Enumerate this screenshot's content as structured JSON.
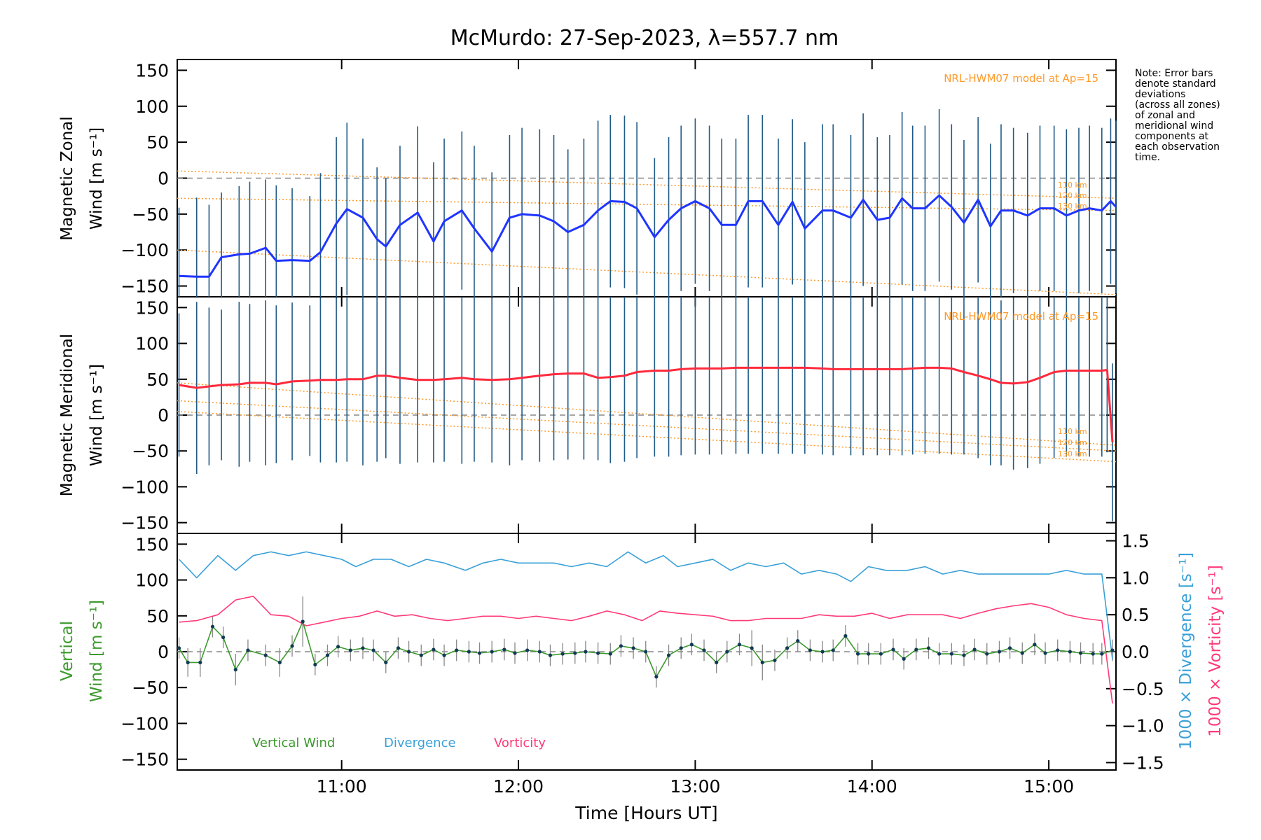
{
  "colors": {
    "zonal": "#1f35ff",
    "meridional": "#ff2a3d",
    "vertical": "#3c9a2d",
    "divergence": "#3aa0d8",
    "vorticity": "#ff3a78",
    "model": "#ff9a2a",
    "errorbar": "#215a86"
  },
  "chart_data": {
    "type": "line",
    "title": "McMurdo: 27-Sep-2023, λ=557.7 nm",
    "xlabel": "Time [Hours UT]",
    "xlim": [
      10.07,
      15.38
    ],
    "xticks": [
      11,
      12,
      13,
      14,
      15
    ],
    "xtick_labels": [
      "11:00",
      "12:00",
      "13:00",
      "14:00",
      "15:00"
    ],
    "yticks": [
      150,
      100,
      50,
      0,
      -50,
      -100,
      -150
    ],
    "ytick_labels": [
      "150",
      "100",
      "50",
      "0",
      "−50",
      "−100",
      "−150"
    ],
    "note": [
      "Note: Error bars",
      "denote standard",
      "deviations",
      "(across all zones)",
      "of zonal and",
      "meridional wind",
      "components at",
      "each observation",
      "time."
    ],
    "zonal": {
      "ylabel_line1": "Magnetic Zonal",
      "ylabel_line2": "Wind [m s⁻¹]",
      "ylim": [
        -165,
        165
      ],
      "model_label": "NRL-HWM07 model at Ap=15",
      "altitude_labels": [
        "110 km",
        "120 km",
        "130 km"
      ],
      "series": [
        {
          "name": "Magnetic Zonal Wind",
          "x": [
            10.08,
            10.18,
            10.25,
            10.32,
            10.42,
            10.48,
            10.57,
            10.63,
            10.72,
            10.82,
            10.88,
            10.97,
            11.03,
            11.12,
            11.2,
            11.25,
            11.33,
            11.43,
            11.52,
            11.58,
            11.68,
            11.75,
            11.85,
            11.95,
            12.02,
            12.12,
            12.2,
            12.28,
            12.37,
            12.45,
            12.52,
            12.6,
            12.67,
            12.77,
            12.85,
            12.92,
            13.0,
            13.08,
            13.15,
            13.23,
            13.3,
            13.38,
            13.47,
            13.55,
            13.62,
            13.72,
            13.78,
            13.88,
            13.95,
            14.03,
            14.1,
            14.17,
            14.23,
            14.3,
            14.38,
            14.45,
            14.52,
            14.6,
            14.67,
            14.73,
            14.8,
            14.88,
            14.95,
            15.03,
            15.1,
            15.17,
            15.23,
            15.3,
            15.35,
            15.38
          ],
          "y": [
            -136,
            -137,
            -137,
            -110,
            -106,
            -105,
            -97,
            -115,
            -114,
            -115,
            -103,
            -63,
            -43,
            -55,
            -85,
            -95,
            -65,
            -48,
            -88,
            -60,
            -45,
            -70,
            -102,
            -55,
            -50,
            -52,
            -60,
            -75,
            -65,
            -45,
            -32,
            -33,
            -42,
            -82,
            -58,
            -42,
            -32,
            -42,
            -65,
            -65,
            -32,
            -32,
            -65,
            -33,
            -70,
            -45,
            -45,
            -55,
            -30,
            -58,
            -55,
            -28,
            -42,
            -42,
            -24,
            -40,
            -62,
            -30,
            -67,
            -45,
            -45,
            -52,
            -42,
            -42,
            -52,
            -45,
            -42,
            -45,
            -32,
            -40
          ],
          "errorbar": [
            95,
            110,
            100,
            90,
            95,
            100,
            95,
            105,
            100,
            90,
            110,
            120,
            120,
            110,
            100,
            95,
            110,
            120,
            110,
            115,
            110,
            115,
            110,
            115,
            120,
            120,
            120,
            115,
            120,
            125,
            120,
            120,
            120,
            110,
            115,
            115,
            115,
            115,
            120,
            120,
            120,
            120,
            120,
            115,
            120,
            120,
            120,
            115,
            120,
            115,
            115,
            120,
            115,
            115,
            120,
            115,
            115,
            115,
            115,
            120,
            115,
            115,
            115,
            115,
            120,
            115,
            115,
            115,
            115,
            120
          ]
        }
      ]
    },
    "meridional": {
      "ylabel_line1": "Magnetic Meridional",
      "ylabel_line2": "Wind [m s⁻¹]",
      "ylim": [
        -165,
        165
      ],
      "model_label": "NRL-HWM07 model at Ap=15",
      "altitude_labels": [
        "110 km",
        "120 km",
        "130 km"
      ],
      "series": [
        {
          "name": "Magnetic Meridional Wind",
          "x": [
            10.08,
            10.18,
            10.25,
            10.32,
            10.42,
            10.48,
            10.57,
            10.63,
            10.72,
            10.82,
            10.88,
            10.97,
            11.03,
            11.12,
            11.2,
            11.25,
            11.33,
            11.43,
            11.52,
            11.58,
            11.68,
            11.75,
            11.85,
            11.95,
            12.02,
            12.12,
            12.2,
            12.28,
            12.37,
            12.45,
            12.52,
            12.6,
            12.67,
            12.77,
            12.85,
            12.92,
            13.0,
            13.08,
            13.15,
            13.23,
            13.3,
            13.38,
            13.47,
            13.55,
            13.62,
            13.72,
            13.78,
            13.88,
            13.95,
            14.03,
            14.1,
            14.17,
            14.23,
            14.3,
            14.38,
            14.45,
            14.52,
            14.6,
            14.67,
            14.73,
            14.8,
            14.88,
            14.95,
            15.03,
            15.1,
            15.17,
            15.23,
            15.3,
            15.33,
            15.36
          ],
          "y": [
            42,
            38,
            40,
            42,
            43,
            45,
            45,
            43,
            47,
            48,
            49,
            49,
            50,
            50,
            55,
            55,
            52,
            49,
            49,
            50,
            52,
            50,
            49,
            50,
            52,
            55,
            57,
            58,
            58,
            52,
            53,
            55,
            60,
            62,
            62,
            64,
            65,
            65,
            65,
            66,
            66,
            66,
            66,
            66,
            66,
            65,
            64,
            64,
            64,
            64,
            64,
            64,
            65,
            66,
            66,
            65,
            60,
            55,
            50,
            45,
            44,
            46,
            52,
            60,
            62,
            62,
            62,
            62,
            63,
            -38
          ],
          "errorbar": [
            100,
            120,
            110,
            105,
            115,
            110,
            115,
            110,
            110,
            105,
            115,
            115,
            115,
            120,
            120,
            115,
            120,
            115,
            115,
            115,
            120,
            115,
            115,
            120,
            115,
            120,
            120,
            120,
            120,
            115,
            120,
            120,
            120,
            120,
            120,
            120,
            120,
            120,
            120,
            120,
            120,
            120,
            120,
            120,
            120,
            120,
            120,
            120,
            120,
            120,
            120,
            120,
            120,
            120,
            120,
            120,
            115,
            115,
            120,
            115,
            120,
            120,
            120,
            120,
            120,
            120,
            120,
            120,
            115,
            110
          ]
        }
      ]
    },
    "vertical": {
      "ylabel_line1": "Vertical",
      "ylabel_line2": "Wind [m s⁻¹]",
      "ylim": [
        -165,
        165
      ],
      "right_ylim": [
        -1.6,
        1.6
      ],
      "right_yticks": [
        1.5,
        1.0,
        0.5,
        0.0,
        -0.5,
        -1.0,
        -1.5
      ],
      "right_ytick_labels": [
        "1.5",
        "1.0",
        "0.5",
        "0.0",
        "−0.5",
        "−1.0",
        "−1.5"
      ],
      "right_label_divergence": "1000 × Divergence [s⁻¹]",
      "right_label_vorticity": "1000 × Vorticity [s⁻¹]",
      "legend": [
        "Vertical Wind",
        "Divergence",
        "Vorticity"
      ],
      "series": [
        {
          "name": "Vertical Wind",
          "x": [
            10.08,
            10.13,
            10.2,
            10.27,
            10.33,
            10.4,
            10.47,
            10.57,
            10.65,
            10.72,
            10.78,
            10.85,
            10.92,
            10.98,
            11.05,
            11.12,
            11.18,
            11.25,
            11.32,
            11.38,
            11.45,
            11.52,
            11.58,
            11.65,
            11.72,
            11.78,
            11.85,
            11.92,
            11.98,
            12.05,
            12.12,
            12.18,
            12.25,
            12.32,
            12.38,
            12.45,
            12.52,
            12.58,
            12.65,
            12.72,
            12.78,
            12.85,
            12.92,
            12.98,
            13.05,
            13.12,
            13.18,
            13.25,
            13.32,
            13.38,
            13.45,
            13.52,
            13.58,
            13.65,
            13.72,
            13.78,
            13.85,
            13.92,
            13.98,
            14.05,
            14.12,
            14.18,
            14.25,
            14.32,
            14.38,
            14.45,
            14.52,
            14.58,
            14.65,
            14.72,
            14.78,
            14.85,
            14.92,
            14.98,
            15.05,
            15.12,
            15.18,
            15.25,
            15.3,
            15.36
          ],
          "y": [
            5,
            -15,
            -15,
            35,
            20,
            -25,
            2,
            -5,
            -15,
            8,
            42,
            -18,
            -5,
            7,
            2,
            5,
            2,
            -15,
            5,
            0,
            -5,
            3,
            -5,
            2,
            0,
            -2,
            0,
            3,
            -2,
            2,
            0,
            -5,
            -3,
            -2,
            0,
            -2,
            -3,
            8,
            5,
            0,
            -35,
            -5,
            5,
            10,
            2,
            -15,
            0,
            10,
            5,
            -15,
            -12,
            5,
            15,
            2,
            0,
            2,
            22,
            -3,
            -3,
            -3,
            3,
            -10,
            3,
            5,
            -3,
            -3,
            -5,
            3,
            -3,
            0,
            5,
            -2,
            10,
            -2,
            2,
            0,
            -2,
            -3,
            -3,
            2
          ],
          "errorbar": [
            15,
            20,
            20,
            15,
            15,
            22,
            15,
            15,
            20,
            15,
            35,
            15,
            15,
            15,
            15,
            15,
            15,
            15,
            15,
            15,
            15,
            15,
            15,
            15,
            15,
            15,
            15,
            15,
            15,
            15,
            15,
            15,
            15,
            15,
            15,
            15,
            15,
            15,
            15,
            15,
            15,
            15,
            15,
            15,
            15,
            15,
            15,
            15,
            25,
            25,
            15,
            15,
            15,
            15,
            15,
            15,
            15,
            15,
            15,
            15,
            15,
            15,
            15,
            15,
            15,
            15,
            15,
            15,
            15,
            15,
            15,
            15,
            15,
            15,
            15,
            15,
            15,
            15,
            15,
            15
          ]
        },
        {
          "name": "Divergence",
          "x": [
            10.08,
            10.18,
            10.3,
            10.4,
            10.5,
            10.6,
            10.7,
            10.8,
            10.9,
            11.0,
            11.08,
            11.18,
            11.28,
            11.38,
            11.48,
            11.58,
            11.7,
            11.8,
            11.9,
            12.0,
            12.1,
            12.2,
            12.3,
            12.4,
            12.5,
            12.62,
            12.72,
            12.82,
            12.9,
            13.0,
            13.1,
            13.2,
            13.3,
            13.4,
            13.5,
            13.6,
            13.7,
            13.8,
            13.88,
            13.98,
            14.08,
            14.2,
            14.3,
            14.4,
            14.5,
            14.6,
            14.7,
            14.8,
            14.9,
            15.0,
            15.1,
            15.2,
            15.3,
            15.36
          ],
          "y": [
            1.25,
            1.0,
            1.3,
            1.1,
            1.3,
            1.35,
            1.3,
            1.35,
            1.3,
            1.25,
            1.15,
            1.25,
            1.25,
            1.15,
            1.25,
            1.2,
            1.1,
            1.2,
            1.25,
            1.2,
            1.2,
            1.2,
            1.15,
            1.2,
            1.15,
            1.35,
            1.2,
            1.3,
            1.15,
            1.2,
            1.25,
            1.1,
            1.2,
            1.15,
            1.2,
            1.05,
            1.1,
            1.05,
            0.95,
            1.15,
            1.1,
            1.1,
            1.15,
            1.05,
            1.1,
            1.05,
            1.05,
            1.05,
            1.05,
            1.05,
            1.1,
            1.05,
            1.05,
            -0.1
          ]
        },
        {
          "name": "Vorticity",
          "x": [
            10.08,
            10.18,
            10.3,
            10.4,
            10.5,
            10.6,
            10.7,
            10.8,
            10.9,
            11.0,
            11.1,
            11.2,
            11.3,
            11.4,
            11.5,
            11.6,
            11.7,
            11.8,
            11.9,
            12.0,
            12.1,
            12.2,
            12.3,
            12.4,
            12.5,
            12.6,
            12.7,
            12.8,
            12.9,
            13.0,
            13.1,
            13.2,
            13.3,
            13.4,
            13.5,
            13.6,
            13.7,
            13.8,
            13.9,
            14.0,
            14.1,
            14.2,
            14.3,
            14.4,
            14.5,
            14.6,
            14.7,
            14.8,
            14.9,
            15.0,
            15.1,
            15.2,
            15.3,
            15.36
          ],
          "y": [
            0.4,
            0.42,
            0.5,
            0.7,
            0.75,
            0.5,
            0.48,
            0.35,
            0.4,
            0.45,
            0.48,
            0.55,
            0.48,
            0.5,
            0.45,
            0.42,
            0.45,
            0.48,
            0.48,
            0.45,
            0.48,
            0.45,
            0.42,
            0.48,
            0.55,
            0.5,
            0.42,
            0.55,
            0.52,
            0.5,
            0.48,
            0.42,
            0.42,
            0.45,
            0.45,
            0.45,
            0.5,
            0.48,
            0.48,
            0.52,
            0.45,
            0.5,
            0.5,
            0.5,
            0.45,
            0.52,
            0.58,
            0.62,
            0.65,
            0.6,
            0.5,
            0.45,
            0.42,
            -0.7
          ]
        }
      ]
    },
    "model_curves": [
      {
        "name": "zonal 110 km",
        "x": [
          10.07,
          15.38
        ],
        "y": [
          10,
          -28
        ]
      },
      {
        "name": "zonal 120 km",
        "x": [
          10.07,
          15.38
        ],
        "y": [
          -28,
          -45
        ]
      },
      {
        "name": "zonal 130 km",
        "x": [
          10.07,
          15.38
        ],
        "y": [
          -100,
          -162
        ]
      },
      {
        "name": "meridional 110 km",
        "x": [
          10.07,
          15.38
        ],
        "y": [
          45,
          -42
        ]
      },
      {
        "name": "meridional 120 km",
        "x": [
          10.07,
          15.38
        ],
        "y": [
          20,
          -50
        ]
      },
      {
        "name": "meridional 130 km",
        "x": [
          10.07,
          15.38
        ],
        "y": [
          5,
          -65
        ]
      }
    ]
  }
}
